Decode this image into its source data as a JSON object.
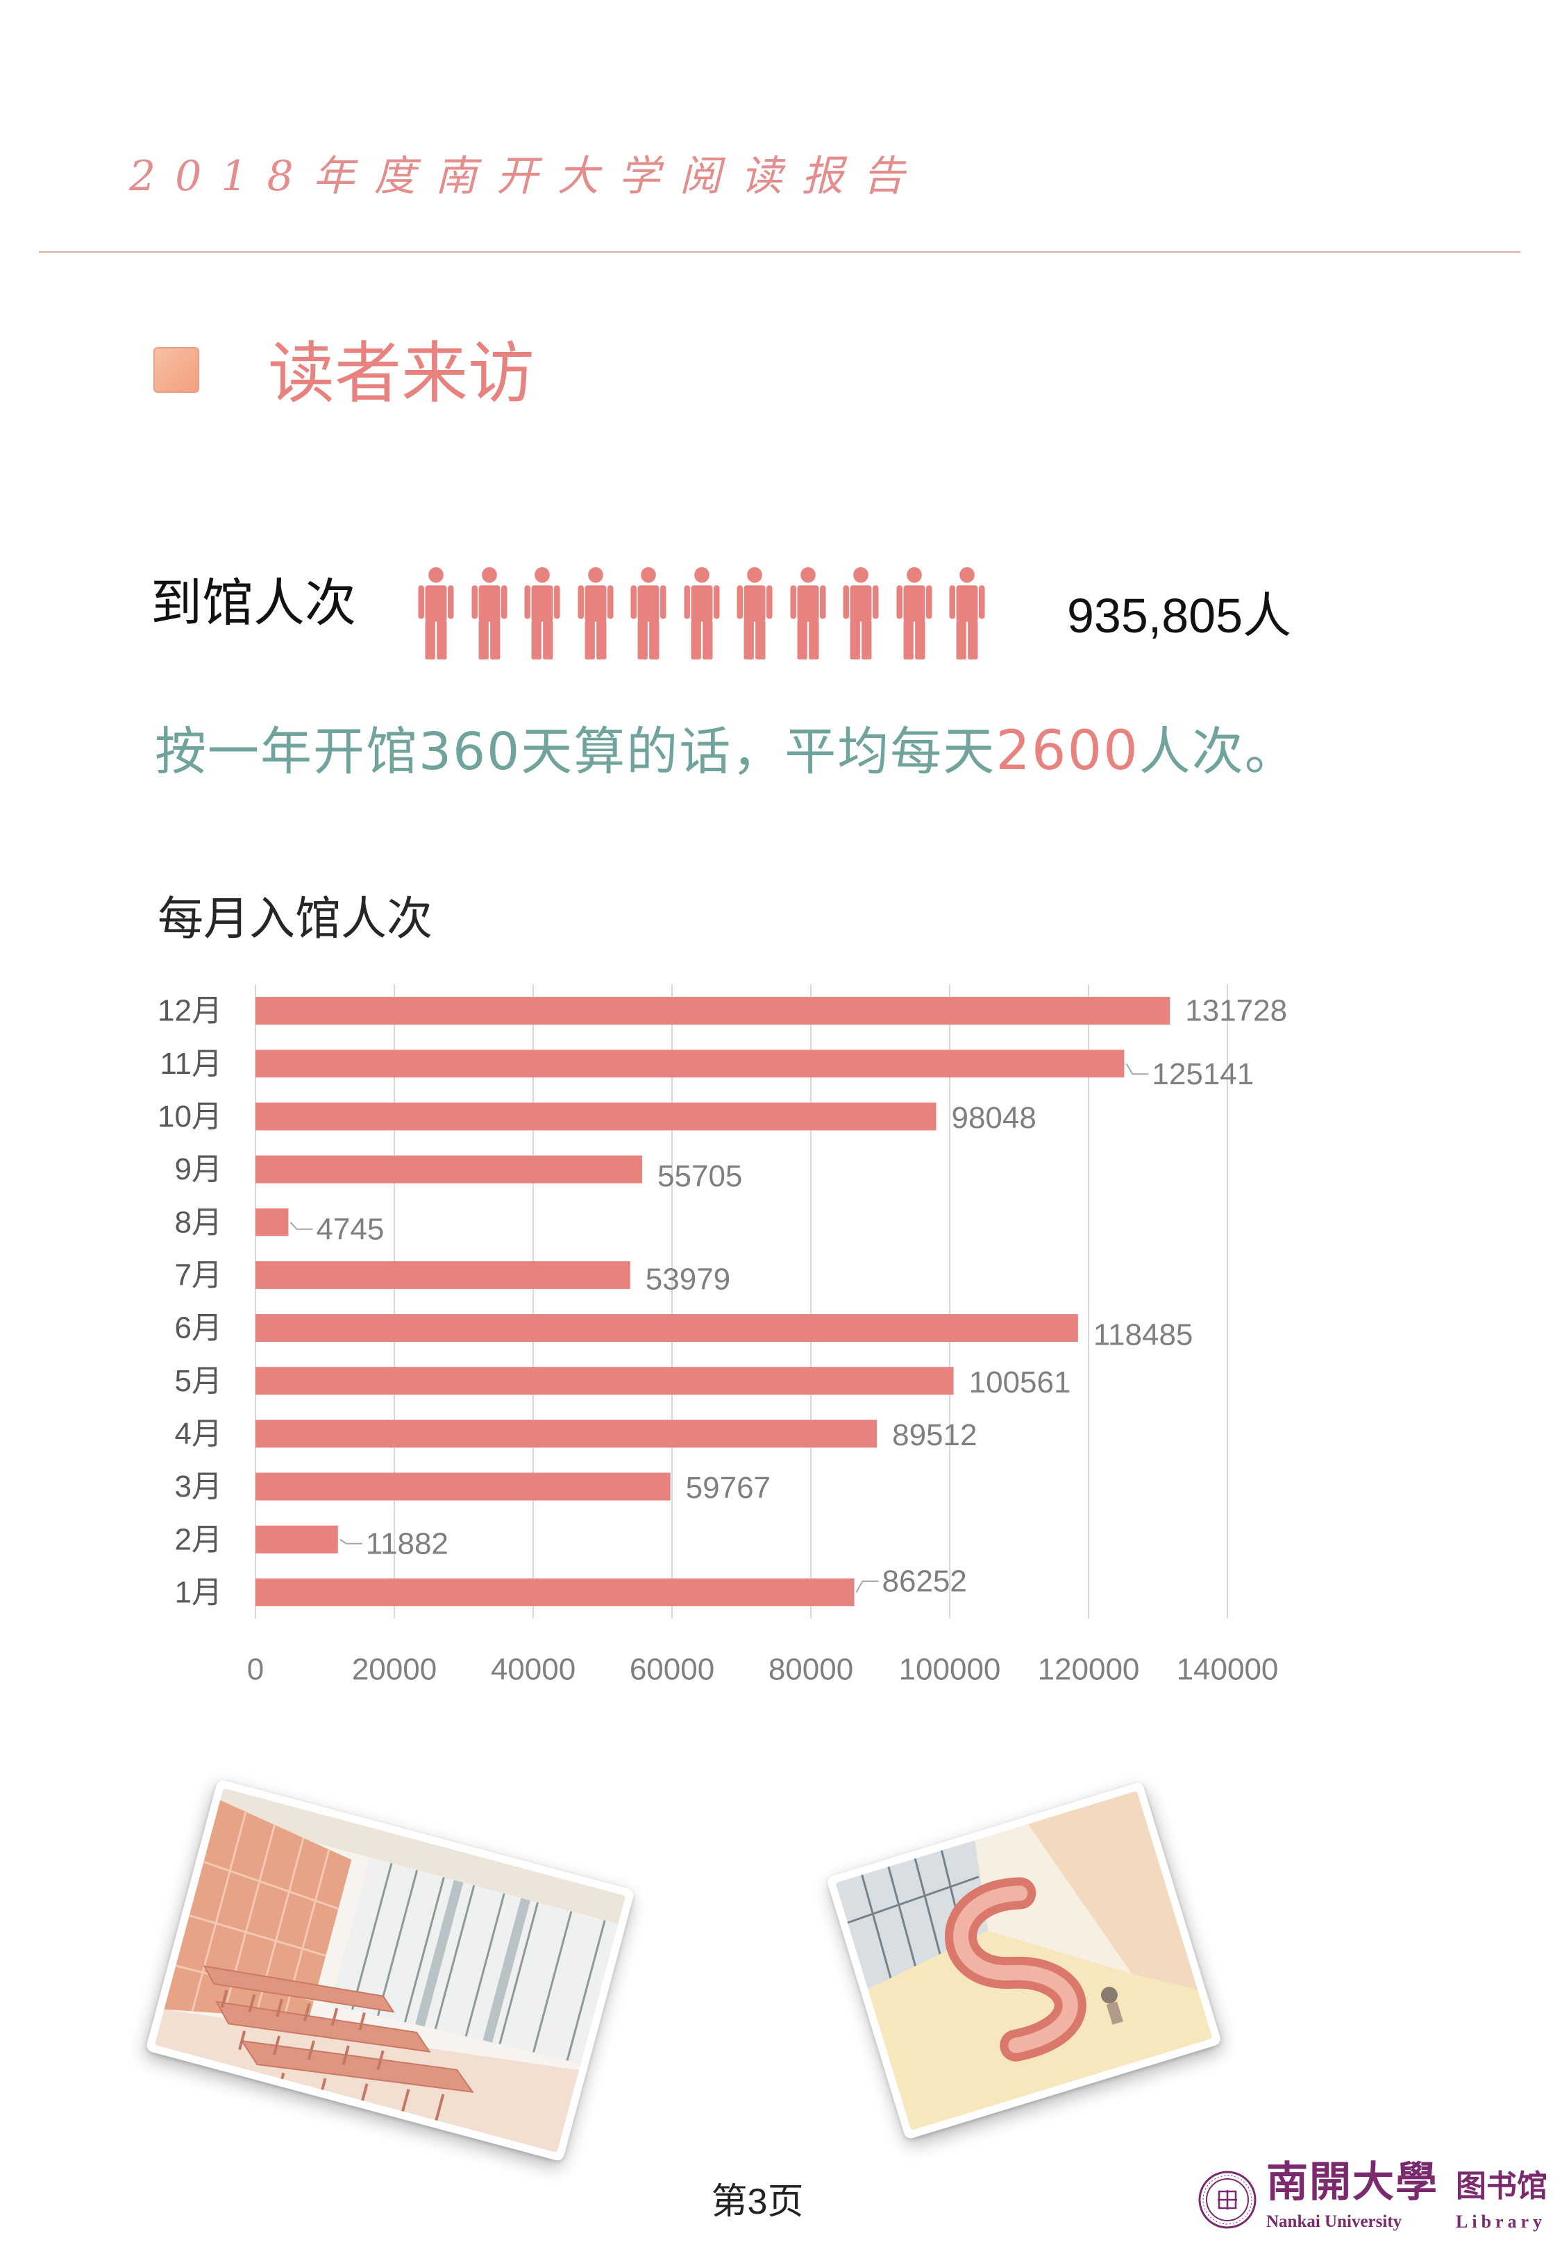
{
  "header": {
    "title": "2018年度南开大学阅读报告"
  },
  "section": {
    "title": "读者来访",
    "icon": "square-bullet-icon"
  },
  "visits": {
    "label": "到馆人次",
    "total": "935,805人",
    "icon": "person-icon",
    "icon_count": 11
  },
  "average": {
    "prefix": "按一年开馆360天算的话，平均每天",
    "highlight": "2600",
    "suffix": "人次。"
  },
  "chart_data": {
    "type": "bar",
    "orientation": "horizontal",
    "title": "每月入馆人次",
    "categories": [
      "1月",
      "2月",
      "3月",
      "4月",
      "5月",
      "6月",
      "7月",
      "8月",
      "9月",
      "10月",
      "11月",
      "12月"
    ],
    "values": [
      86252,
      11882,
      59767,
      89512,
      100561,
      118485,
      53979,
      4745,
      55705,
      98048,
      125141,
      131728
    ],
    "xlim": [
      0,
      140000
    ],
    "xticks": [
      0,
      20000,
      40000,
      60000,
      80000,
      100000,
      120000,
      140000
    ],
    "grid": "vertical",
    "data_labels": true,
    "legend": "none",
    "color": "#e8827f"
  },
  "photos": [
    "reading-room-photo",
    "circulation-desk-photo"
  ],
  "footer": {
    "page": "第3页",
    "logo": {
      "seal_icon": "nankai-seal-icon",
      "name_cn": "南開大學",
      "dept_cn": "图书馆",
      "name_en": "Nankai University",
      "dept_en": "Library"
    }
  },
  "colors": {
    "accent": "#e8827f",
    "teal": "#6fa39b",
    "logo": "#7b2a6e",
    "header": "#e38e8c"
  }
}
